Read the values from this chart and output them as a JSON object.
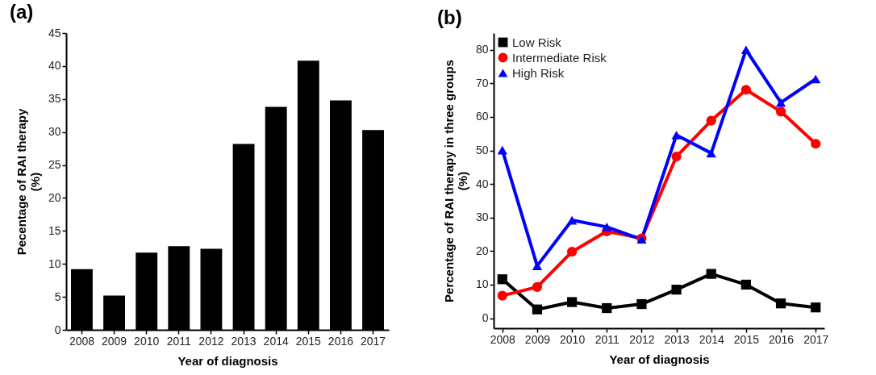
{
  "chart_data": [
    {
      "type": "bar",
      "title": "(a)",
      "categories": [
        "2008",
        "2009",
        "2010",
        "2011",
        "2012",
        "2013",
        "2014",
        "2015",
        "2016",
        "2017"
      ],
      "values": [
        9.2,
        5.2,
        11.7,
        12.7,
        12.3,
        28.2,
        33.8,
        40.8,
        34.8,
        30.3
      ],
      "color": "#000000",
      "ylim": [
        0,
        45
      ],
      "yticks": [
        0,
        5,
        10,
        15,
        20,
        25,
        30,
        35,
        40,
        45
      ],
      "xlabel": "Year of diagnosis",
      "ylabel": "Pecentage of RAI therapy\n(%)"
    },
    {
      "type": "line",
      "title": "(b)",
      "categories": [
        "2008",
        "2009",
        "2010",
        "2011",
        "2012",
        "2013",
        "2014",
        "2015",
        "2016",
        "2017"
      ],
      "series": [
        {
          "name": "Low Risk",
          "color": "#000000",
          "marker": "square",
          "values": [
            11.6,
            2.6,
            4.8,
            3.0,
            4.2,
            8.5,
            13.2,
            10.0,
            4.4,
            3.2
          ]
        },
        {
          "name": "Intermediate Risk",
          "color": "#ff0000",
          "marker": "circle",
          "values": [
            6.7,
            9.3,
            19.8,
            25.9,
            23.8,
            48.2,
            58.9,
            68.1,
            61.6,
            52.0
          ]
        },
        {
          "name": "High Risk",
          "color": "#0000ff",
          "marker": "triangle",
          "values": [
            50.1,
            15.6,
            29.2,
            27.2,
            23.5,
            54.6,
            49.2,
            80.0,
            64.3,
            71.3
          ]
        }
      ],
      "ylim": [
        -3,
        85
      ],
      "yticks": [
        0,
        10,
        20,
        30,
        40,
        50,
        60,
        70,
        80
      ],
      "xlabel": "Year of diagnosis",
      "ylabel": "Percentage of RAI therapy in three groups\n(%)",
      "legend": "top left"
    }
  ]
}
